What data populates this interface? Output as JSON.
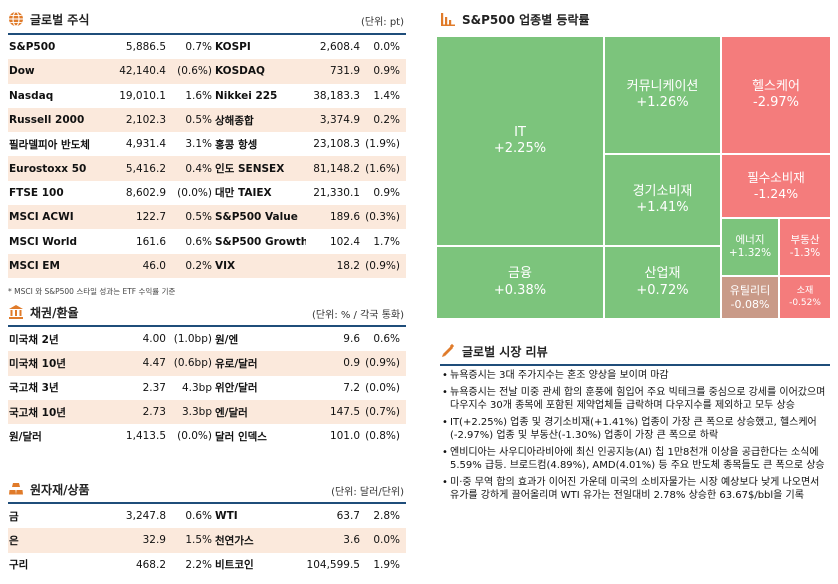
{
  "stock": {
    "title": "글로벌 주식",
    "unit": "(단위: pt)",
    "rows": [
      {
        "l_name": "S&P500",
        "l_val": "5,886.5",
        "l_chg": "0.7%",
        "r_name": "KOSPI",
        "r_val": "2,608.4",
        "r_chg": "0.0%"
      },
      {
        "l_name": "Dow",
        "l_val": "42,140.4",
        "l_chg": "(0.6%)",
        "r_name": "KOSDAQ",
        "r_val": "731.9",
        "r_chg": "0.9%"
      },
      {
        "l_name": "Nasdaq",
        "l_val": "19,010.1",
        "l_chg": "1.6%",
        "r_name": "Nikkei 225",
        "r_val": "38,183.3",
        "r_chg": "1.4%"
      },
      {
        "l_name": "Russell 2000",
        "l_val": "2,102.3",
        "l_chg": "0.5%",
        "r_name": "상해종합",
        "r_val": "3,374.9",
        "r_chg": "0.2%"
      },
      {
        "l_name": "필라델피아 반도체",
        "l_val": "4,931.4",
        "l_chg": "3.1%",
        "r_name": "홍콩 항셍",
        "r_val": "23,108.3",
        "r_chg": "(1.9%)"
      },
      {
        "l_name": "Eurostoxx 50",
        "l_val": "5,416.2",
        "l_chg": "0.4%",
        "r_name": "인도 SENSEX",
        "r_val": "81,148.2",
        "r_chg": "(1.6%)"
      },
      {
        "l_name": "FTSE 100",
        "l_val": "8,602.9",
        "l_chg": "(0.0%)",
        "r_name": "대만 TAIEX",
        "r_val": "21,330.1",
        "r_chg": "0.9%"
      },
      {
        "l_name": "MSCI ACWI",
        "l_val": "122.7",
        "l_chg": "0.5%",
        "r_name": "S&P500 Value",
        "r_val": "189.6",
        "r_chg": "(0.3%)"
      },
      {
        "l_name": "MSCI World",
        "l_val": "161.6",
        "l_chg": "0.6%",
        "r_name": "S&P500 Growth",
        "r_val": "102.4",
        "r_chg": "1.7%"
      },
      {
        "l_name": "MSCI EM",
        "l_val": "46.0",
        "l_chg": "0.2%",
        "r_name": "VIX",
        "r_val": "18.2",
        "r_chg": "(0.9%)"
      }
    ],
    "note": "* MSCI 와 S&P500 스타일 성과는 ETF 수익률 기준"
  },
  "bond": {
    "title": "채권/환율",
    "unit": "(단위: % / 각국 통화)",
    "rows": [
      {
        "l_name": "미국채 2년",
        "l_val": "4.00",
        "l_chg": "(1.0bp)",
        "r_name": "원/엔",
        "r_val": "9.6",
        "r_chg": "0.6%"
      },
      {
        "l_name": "미국채 10년",
        "l_val": "4.47",
        "l_chg": "(0.6bp)",
        "r_name": "유로/달러",
        "r_val": "0.9",
        "r_chg": "(0.9%)"
      },
      {
        "l_name": "국고채 3년",
        "l_val": "2.37",
        "l_chg": "4.3bp",
        "r_name": "위안/달러",
        "r_val": "7.2",
        "r_chg": "(0.0%)"
      },
      {
        "l_name": "국고채 10년",
        "l_val": "2.73",
        "l_chg": "3.3bp",
        "r_name": "엔/달러",
        "r_val": "147.5",
        "r_chg": "(0.7%)"
      },
      {
        "l_name": "원/달러",
        "l_val": "1,413.5",
        "l_chg": "(0.0%)",
        "r_name": "달러 인덱스",
        "r_val": "101.0",
        "r_chg": "(0.8%)"
      }
    ]
  },
  "commodity": {
    "title": "원자재/상품",
    "unit": "(단위: 달러/단위)",
    "rows": [
      {
        "l_name": "금",
        "l_val": "3,247.8",
        "l_chg": "0.6%",
        "r_name": "WTI",
        "r_val": "63.7",
        "r_chg": "2.8%"
      },
      {
        "l_name": "은",
        "l_val": "32.9",
        "l_chg": "1.5%",
        "r_name": "천연가스",
        "r_val": "3.6",
        "r_chg": "0.0%"
      },
      {
        "l_name": "구리",
        "l_val": "468.2",
        "l_chg": "2.2%",
        "r_name": "비트코인",
        "r_val": "104,599.5",
        "r_chg": "1.9%"
      }
    ]
  },
  "sector": {
    "title": "S&P500 업종별 등락률",
    "cells": [
      {
        "name": "IT",
        "pct": "+2.25%",
        "color": "#7cc47c"
      },
      {
        "name": "금융",
        "pct": "+0.38%",
        "color": "#7cc47c"
      },
      {
        "name": "커뮤니케이션",
        "pct": "+1.26%",
        "color": "#7cc47c"
      },
      {
        "name": "경기소비재",
        "pct": "+1.41%",
        "color": "#7cc47c"
      },
      {
        "name": "산업재",
        "pct": "+0.72%",
        "color": "#7cc47c"
      },
      {
        "name": "헬스케어",
        "pct": "-2.97%",
        "color": "#f47c7c"
      },
      {
        "name": "필수소비재",
        "pct": "-1.24%",
        "color": "#f47c7c"
      },
      {
        "name": "에너지",
        "pct": "+1.32%",
        "color": "#7cc47c"
      },
      {
        "name": "부동산",
        "pct": "-1.3%",
        "color": "#f47c7c"
      },
      {
        "name": "유틸리티",
        "pct": "-0.08%",
        "color": "#c99a88"
      },
      {
        "name": "소재",
        "pct": "-0.52%",
        "color": "#f47c7c"
      }
    ]
  },
  "review": {
    "title": "글로벌 시장 리뷰",
    "items": [
      "뉴욕증시는 3대 주가지수는 혼조 양상을 보이며 마감",
      "뉴욕증시는 전날 미중 관세 합의 훈풍에 힘입어 주요 빅테크를 중심으로 강세를 이어갔으며 다우지수 30개 종목에 포함된 제약업체들 급락하며 다우지수를 제외하고 모두 상승",
      "IT(+2.25%) 업종 및 경기소비재(+1.41%) 업종이 가장 큰 폭으로 상승했고, 헬스케어(-2.97%) 업종 및 부동산(-1.30%) 업종이 가장 큰 폭으로 하락",
      "엔비디아는 사우디아라비아에 최신 인공지능(AI) 칩 1만8천개 이상을 공급한다는 소식에 5.59% 급등. 브로드컴(4.89%), AMD(4.01%) 등 주요 반도체 종목들도 큰 폭으로 상승",
      "미·중 무역 합의 효과가 이어진 가운데 미국의 소비자물가는 시장 예상보다 낮게 나오면서 유가를 강하게 끌어올리며 WTI 유가는 전일대비 2.78% 상승한 63.67$/bbl을 기록"
    ]
  },
  "colors": {
    "green": "#7cc47c",
    "red": "#f47c7c",
    "shade": "#fbe9dc",
    "line": "#1f4d7a"
  }
}
